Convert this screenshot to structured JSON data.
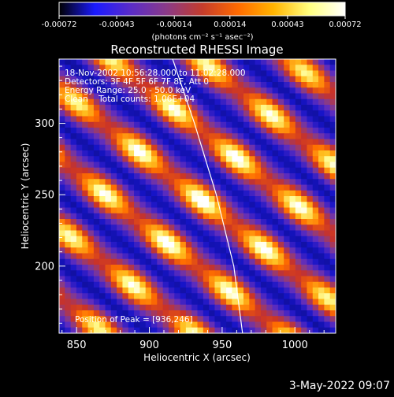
{
  "chart_data": {
    "type": "heatmap",
    "title": "Reconstructed RHESSI Image",
    "colorbar": {
      "ticks": [
        "-0.00072",
        "-0.00043",
        "-0.00014",
        "0.00014",
        "0.00043",
        "0.00072"
      ],
      "range": [
        -0.00072,
        0.00072
      ],
      "unit_label": "(photons cm⁻² s⁻¹ asec⁻²)",
      "colormap": [
        "#000000",
        "#1a1aff",
        "#5a2cc8",
        "#8a3a88",
        "#c43c2c",
        "#ff6a00",
        "#ffb400",
        "#ffff80",
        "#ffffff"
      ]
    },
    "xlabel": "Heliocentric X (arcsec)",
    "ylabel": "Heliocentric Y (arcsec)",
    "x_ticks": [
      "850",
      "900",
      "950",
      "1000"
    ],
    "y_ticks": [
      "200",
      "250",
      "300"
    ],
    "xlim": [
      838,
      1028
    ],
    "ylim": [
      153,
      345
    ],
    "info_lines": [
      "18-Nov-2002 10:56:28.000 to 11:02:28.000",
      "Detectors: 3F 4F 5F 6F 7F 8F, Att 0",
      "Energy Range: 25.0 - 50.0 keV",
      "Clean    Total counts: 1.06E+04"
    ],
    "peak_label": "Position of Peak = [936,246]",
    "peak": [
      936,
      246
    ],
    "limb_points": [
      [
        916,
        345
      ],
      [
        931,
        300
      ],
      [
        946,
        250
      ],
      [
        958,
        200
      ],
      [
        964,
        153
      ]
    ]
  },
  "footer": {
    "date": "3-May-2022 09:07"
  }
}
